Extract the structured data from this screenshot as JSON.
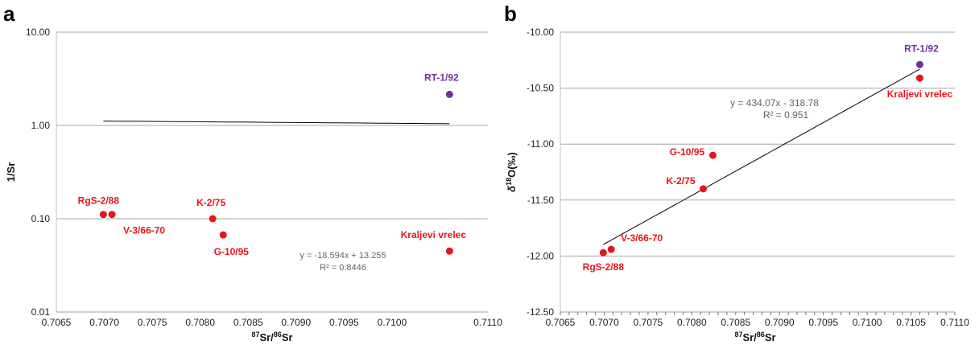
{
  "chart_data": [
    {
      "panel": "a",
      "type": "scatter",
      "xlabel_sup1": "87",
      "xlabel_mid": "Sr/",
      "xlabel_sup2": "86",
      "xlabel_end": "Sr",
      "ylabel": "1/Sr",
      "xlim": [
        0.7065,
        0.711
      ],
      "ylim": [
        0.01,
        10
      ],
      "yscale": "log",
      "x_ticks": [
        "0.7065",
        "0.7070",
        "0.7075",
        "0.7080",
        "0.7085",
        "0.7090",
        "0.7095",
        "0.7100",
        "0.7110"
      ],
      "y_ticks": [
        "10.00",
        "1.00",
        "0.10",
        "0.01"
      ],
      "points": [
        {
          "label": "RgS-2/88",
          "x": 0.70699,
          "y": 0.111,
          "color": "#e8141b"
        },
        {
          "label": "V-3/66-70",
          "x": 0.70708,
          "y": 0.111,
          "color": "#e8141b"
        },
        {
          "label": "K-2/75",
          "x": 0.70813,
          "y": 0.1,
          "color": "#e8141b"
        },
        {
          "label": "G-10/95",
          "x": 0.70824,
          "y": 0.067,
          "color": "#e8141b"
        },
        {
          "label": "Kraljevi vrelec",
          "x": 0.7106,
          "y": 0.045,
          "color": "#e8141b"
        },
        {
          "label": "RT-1/92",
          "x": 0.7106,
          "y": 2.15,
          "color": "#7030a0"
        }
      ],
      "trendline": {
        "equation": "y = -18.594x + 13.255",
        "r2": "R² = 0.8446",
        "x_range": [
          0.70699,
          0.7106
        ]
      }
    },
    {
      "panel": "b",
      "type": "scatter",
      "xlabel_sup1": "87",
      "xlabel_mid": "Sr/",
      "xlabel_sup2": "86",
      "xlabel_end": "Sr",
      "ylabel_pre": "δ",
      "ylabel_sup": "18",
      "ylabel_post": "O(‰)",
      "xlim": [
        0.7065,
        0.711
      ],
      "ylim": [
        -12.5,
        -10.0
      ],
      "x_ticks": [
        "0.7065",
        "0.7070",
        "0.7075",
        "0.7080",
        "0.7085",
        "0.7090",
        "0.7095",
        "0.7100",
        "0.7105",
        "0.7110"
      ],
      "y_ticks": [
        "-10.00",
        "-10.50",
        "-11.00",
        "-11.50",
        "-12.00",
        "-12.50"
      ],
      "points": [
        {
          "label": "RgS-2/88",
          "x": 0.70699,
          "y": -11.97,
          "color": "#e8141b"
        },
        {
          "label": "V-3/66-70",
          "x": 0.70708,
          "y": -11.94,
          "color": "#e8141b"
        },
        {
          "label": "K-2/75",
          "x": 0.70813,
          "y": -11.4,
          "color": "#e8141b"
        },
        {
          "label": "G-10/95",
          "x": 0.70824,
          "y": -11.1,
          "color": "#e8141b"
        },
        {
          "label": "Kraljevi vrelec",
          "x": 0.7106,
          "y": -10.41,
          "color": "#e8141b"
        },
        {
          "label": "RT-1/92",
          "x": 0.7106,
          "y": -10.29,
          "color": "#7030a0"
        }
      ],
      "trendline": {
        "equation": "y = 434.07x - 318.78",
        "r2": "R² = 0.951",
        "x_range": [
          0.70699,
          0.7106
        ]
      }
    }
  ]
}
